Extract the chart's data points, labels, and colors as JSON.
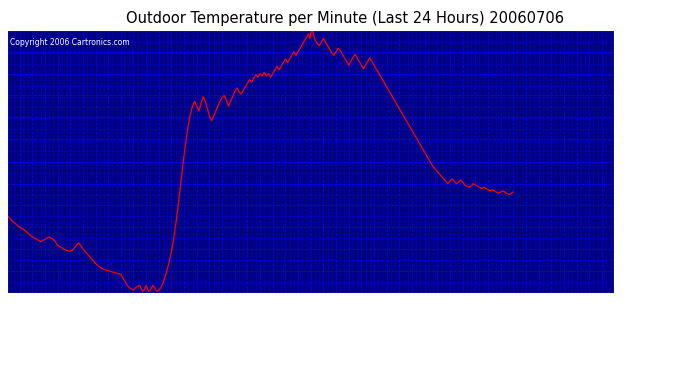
{
  "title": "Outdoor Temperature per Minute (Last 24 Hours) 20060706",
  "copyright_text": "Copyright 2006 Cartronics.com",
  "plot_bg_color": "#000080",
  "line_color": "#FF0000",
  "grid_color": "#0000FF",
  "text_color": "#FFFFFF",
  "title_color": "#000000",
  "outer_bg": "#FFFFFF",
  "yticks": [
    56.6,
    58.4,
    60.2,
    62.0,
    63.8,
    65.6,
    67.4,
    69.3,
    71.1,
    72.9,
    74.7,
    76.5,
    78.3
  ],
  "ylim": [
    56.6,
    78.3
  ],
  "xtick_interval_minutes": 30,
  "curve_data": [
    [
      0,
      63.0
    ],
    [
      10,
      62.6
    ],
    [
      20,
      62.3
    ],
    [
      30,
      62.0
    ],
    [
      40,
      61.8
    ],
    [
      50,
      61.5
    ],
    [
      60,
      61.2
    ],
    [
      70,
      61.0
    ],
    [
      80,
      60.8
    ],
    [
      90,
      61.0
    ],
    [
      100,
      61.2
    ],
    [
      110,
      61.0
    ],
    [
      115,
      60.8
    ],
    [
      120,
      60.5
    ],
    [
      130,
      60.3
    ],
    [
      140,
      60.1
    ],
    [
      150,
      60.0
    ],
    [
      155,
      60.1
    ],
    [
      160,
      60.3
    ],
    [
      165,
      60.5
    ],
    [
      170,
      60.7
    ],
    [
      175,
      60.5
    ],
    [
      180,
      60.2
    ],
    [
      190,
      59.8
    ],
    [
      200,
      59.4
    ],
    [
      210,
      59.0
    ],
    [
      220,
      58.7
    ],
    [
      230,
      58.5
    ],
    [
      240,
      58.4
    ],
    [
      250,
      58.3
    ],
    [
      260,
      58.2
    ],
    [
      270,
      58.1
    ],
    [
      275,
      57.8
    ],
    [
      280,
      57.5
    ],
    [
      285,
      57.2
    ],
    [
      290,
      57.0
    ],
    [
      295,
      56.9
    ],
    [
      300,
      56.8
    ],
    [
      305,
      57.0
    ],
    [
      310,
      57.1
    ],
    [
      315,
      57.2
    ],
    [
      318,
      56.9
    ],
    [
      320,
      56.8
    ],
    [
      322,
      56.7
    ],
    [
      325,
      56.8
    ],
    [
      328,
      57.0
    ],
    [
      330,
      57.2
    ],
    [
      333,
      56.9
    ],
    [
      336,
      56.7
    ],
    [
      340,
      56.8
    ],
    [
      343,
      57.0
    ],
    [
      346,
      57.2
    ],
    [
      350,
      57.0
    ],
    [
      353,
      56.8
    ],
    [
      356,
      56.7
    ],
    [
      360,
      56.8
    ],
    [
      365,
      57.0
    ],
    [
      370,
      57.4
    ],
    [
      375,
      57.9
    ],
    [
      380,
      58.5
    ],
    [
      385,
      59.2
    ],
    [
      390,
      60.0
    ],
    [
      395,
      61.0
    ],
    [
      400,
      62.2
    ],
    [
      405,
      63.5
    ],
    [
      410,
      65.0
    ],
    [
      415,
      66.5
    ],
    [
      420,
      68.0
    ],
    [
      425,
      69.3
    ],
    [
      430,
      70.5
    ],
    [
      435,
      71.4
    ],
    [
      440,
      72.0
    ],
    [
      445,
      72.4
    ],
    [
      450,
      72.0
    ],
    [
      455,
      71.6
    ],
    [
      460,
      72.2
    ],
    [
      465,
      72.8
    ],
    [
      470,
      72.4
    ],
    [
      475,
      71.8
    ],
    [
      480,
      71.2
    ],
    [
      485,
      70.8
    ],
    [
      490,
      71.2
    ],
    [
      495,
      71.6
    ],
    [
      500,
      72.0
    ],
    [
      505,
      72.4
    ],
    [
      510,
      72.7
    ],
    [
      515,
      72.9
    ],
    [
      520,
      72.5
    ],
    [
      525,
      72.0
    ],
    [
      530,
      72.4
    ],
    [
      535,
      72.8
    ],
    [
      540,
      73.2
    ],
    [
      545,
      73.5
    ],
    [
      550,
      73.2
    ],
    [
      555,
      73.0
    ],
    [
      560,
      73.3
    ],
    [
      565,
      73.6
    ],
    [
      570,
      73.9
    ],
    [
      575,
      74.2
    ],
    [
      580,
      74.0
    ],
    [
      585,
      74.3
    ],
    [
      590,
      74.6
    ],
    [
      595,
      74.4
    ],
    [
      600,
      74.7
    ],
    [
      605,
      74.5
    ],
    [
      610,
      74.8
    ],
    [
      615,
      74.5
    ],
    [
      620,
      74.7
    ],
    [
      625,
      74.4
    ],
    [
      630,
      74.7
    ],
    [
      635,
      75.0
    ],
    [
      640,
      75.3
    ],
    [
      645,
      75.0
    ],
    [
      650,
      75.3
    ],
    [
      655,
      75.6
    ],
    [
      660,
      75.9
    ],
    [
      665,
      75.6
    ],
    [
      670,
      75.9
    ],
    [
      675,
      76.2
    ],
    [
      680,
      76.5
    ],
    [
      685,
      76.2
    ],
    [
      690,
      76.5
    ],
    [
      695,
      76.8
    ],
    [
      700,
      77.1
    ],
    [
      705,
      77.4
    ],
    [
      710,
      77.7
    ],
    [
      715,
      78.0
    ],
    [
      718,
      77.6
    ],
    [
      721,
      78.1
    ],
    [
      724,
      78.3
    ],
    [
      727,
      77.9
    ],
    [
      730,
      77.5
    ],
    [
      735,
      77.2
    ],
    [
      740,
      77.0
    ],
    [
      745,
      77.3
    ],
    [
      750,
      77.6
    ],
    [
      755,
      77.3
    ],
    [
      760,
      77.0
    ],
    [
      765,
      76.7
    ],
    [
      770,
      76.4
    ],
    [
      775,
      76.2
    ],
    [
      780,
      76.5
    ],
    [
      785,
      76.8
    ],
    [
      790,
      76.6
    ],
    [
      795,
      76.3
    ],
    [
      800,
      76.0
    ],
    [
      805,
      75.7
    ],
    [
      810,
      75.4
    ],
    [
      815,
      75.7
    ],
    [
      820,
      76.0
    ],
    [
      825,
      76.3
    ],
    [
      830,
      76.0
    ],
    [
      835,
      75.7
    ],
    [
      840,
      75.4
    ],
    [
      845,
      75.1
    ],
    [
      850,
      75.4
    ],
    [
      855,
      75.7
    ],
    [
      860,
      76.0
    ],
    [
      865,
      75.7
    ],
    [
      870,
      75.4
    ],
    [
      875,
      75.1
    ],
    [
      880,
      74.8
    ],
    [
      885,
      74.5
    ],
    [
      890,
      74.2
    ],
    [
      895,
      73.9
    ],
    [
      900,
      73.6
    ],
    [
      905,
      73.3
    ],
    [
      910,
      73.0
    ],
    [
      915,
      72.7
    ],
    [
      920,
      72.4
    ],
    [
      925,
      72.1
    ],
    [
      930,
      71.8
    ],
    [
      935,
      71.5
    ],
    [
      940,
      71.2
    ],
    [
      945,
      70.9
    ],
    [
      950,
      70.6
    ],
    [
      955,
      70.3
    ],
    [
      960,
      70.0
    ],
    [
      965,
      69.7
    ],
    [
      970,
      69.4
    ],
    [
      975,
      69.1
    ],
    [
      980,
      68.8
    ],
    [
      985,
      68.5
    ],
    [
      990,
      68.2
    ],
    [
      995,
      67.9
    ],
    [
      1000,
      67.6
    ],
    [
      1005,
      67.3
    ],
    [
      1010,
      67.0
    ],
    [
      1015,
      66.8
    ],
    [
      1020,
      66.6
    ],
    [
      1025,
      66.4
    ],
    [
      1030,
      66.2
    ],
    [
      1035,
      66.0
    ],
    [
      1040,
      65.8
    ],
    [
      1045,
      65.6
    ],
    [
      1050,
      65.8
    ],
    [
      1055,
      66.0
    ],
    [
      1060,
      65.8
    ],
    [
      1065,
      65.6
    ],
    [
      1070,
      65.7
    ],
    [
      1075,
      65.9
    ],
    [
      1080,
      65.7
    ],
    [
      1085,
      65.5
    ],
    [
      1090,
      65.4
    ],
    [
      1095,
      65.3
    ],
    [
      1100,
      65.4
    ],
    [
      1105,
      65.6
    ],
    [
      1110,
      65.5
    ],
    [
      1115,
      65.4
    ],
    [
      1120,
      65.3
    ],
    [
      1125,
      65.2
    ],
    [
      1130,
      65.3
    ],
    [
      1135,
      65.2
    ],
    [
      1140,
      65.1
    ],
    [
      1145,
      65.0
    ],
    [
      1150,
      65.1
    ],
    [
      1155,
      65.0
    ],
    [
      1160,
      64.9
    ],
    [
      1165,
      64.8
    ],
    [
      1170,
      64.9
    ],
    [
      1175,
      65.0
    ],
    [
      1180,
      64.9
    ],
    [
      1185,
      64.8
    ],
    [
      1190,
      64.7
    ],
    [
      1195,
      64.8
    ],
    [
      1199,
      64.9
    ]
  ]
}
